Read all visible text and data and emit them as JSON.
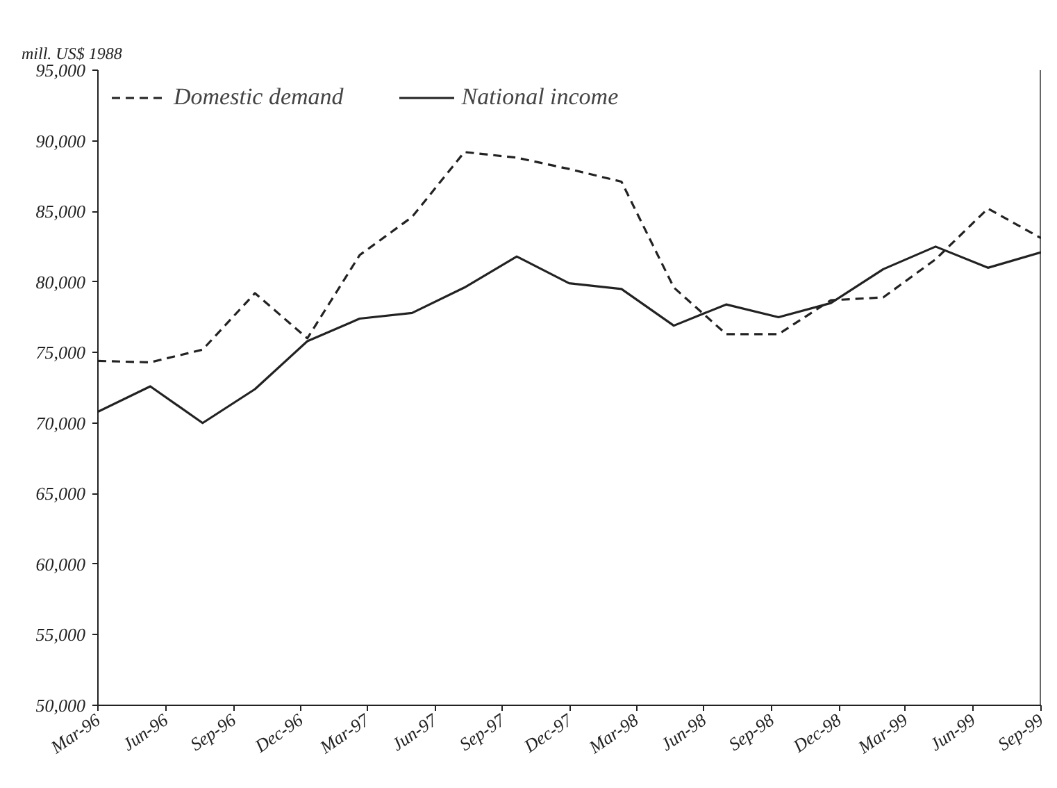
{
  "chart_data": {
    "type": "line",
    "title": "mill. US$ 1988",
    "x": [
      "1996-03-01",
      "1996-05-11",
      "1996-07-21",
      "1996-09-30",
      "1996-12-10",
      "1997-02-19",
      "1997-05-01",
      "1997-07-11",
      "1997-09-20",
      "1997-11-30",
      "1998-02-09",
      "1998-04-21",
      "1998-07-01",
      "1998-09-10",
      "1998-11-20",
      "1999-01-30",
      "1999-04-11",
      "1999-06-21",
      "1999-09-01"
    ],
    "xlim": [
      "1996-03-01",
      "1999-09-01"
    ],
    "xticks": [
      {
        "value": "1996-03-01",
        "label": "Mar-96"
      },
      {
        "value": "1996-06-01",
        "label": "Jun-96"
      },
      {
        "value": "1996-09-01",
        "label": "Sep-96"
      },
      {
        "value": "1996-12-01",
        "label": "Dec-96"
      },
      {
        "value": "1997-03-01",
        "label": "Mar-97"
      },
      {
        "value": "1997-06-01",
        "label": "Jun-97"
      },
      {
        "value": "1997-09-01",
        "label": "Sep-97"
      },
      {
        "value": "1997-12-01",
        "label": "Dec-97"
      },
      {
        "value": "1998-03-01",
        "label": "Mar-98"
      },
      {
        "value": "1998-06-01",
        "label": "Jun-98"
      },
      {
        "value": "1998-09-01",
        "label": "Sep-98"
      },
      {
        "value": "1998-12-01",
        "label": "Dec-98"
      },
      {
        "value": "1999-03-01",
        "label": "Mar-99"
      },
      {
        "value": "1999-06-01",
        "label": "Jun-99"
      },
      {
        "value": "1999-09-01",
        "label": "Sep-99"
      }
    ],
    "ylim": [
      50000,
      95000
    ],
    "yticks": [
      {
        "value": 50000,
        "label": "50,000"
      },
      {
        "value": 55000,
        "label": "55,000"
      },
      {
        "value": 60000,
        "label": "60,000"
      },
      {
        "value": 65000,
        "label": "65,000"
      },
      {
        "value": 70000,
        "label": "70,000"
      },
      {
        "value": 75000,
        "label": "75,000"
      },
      {
        "value": 80000,
        "label": "80,000"
      },
      {
        "value": 85000,
        "label": "85,000"
      },
      {
        "value": 90000,
        "label": "90,000"
      },
      {
        "value": 95000,
        "label": "95,000"
      }
    ],
    "legend": "top left",
    "series": [
      {
        "name": "Domestic demand",
        "color": "#222222",
        "line_style": "dashed",
        "values": [
          74400,
          74300,
          75200,
          79200,
          76000,
          81900,
          84600,
          89200,
          88800,
          88000,
          87100,
          79600,
          76300,
          76300,
          78700,
          78900,
          81600,
          85200,
          83100
        ]
      },
      {
        "name": "National income",
        "color": "#222222",
        "line_style": "solid",
        "values": [
          70800,
          72600,
          70000,
          72400,
          75800,
          77400,
          77800,
          79600,
          81800,
          79900,
          79500,
          76900,
          78400,
          77500,
          78500,
          80900,
          82500,
          81000,
          82100
        ]
      }
    ]
  }
}
